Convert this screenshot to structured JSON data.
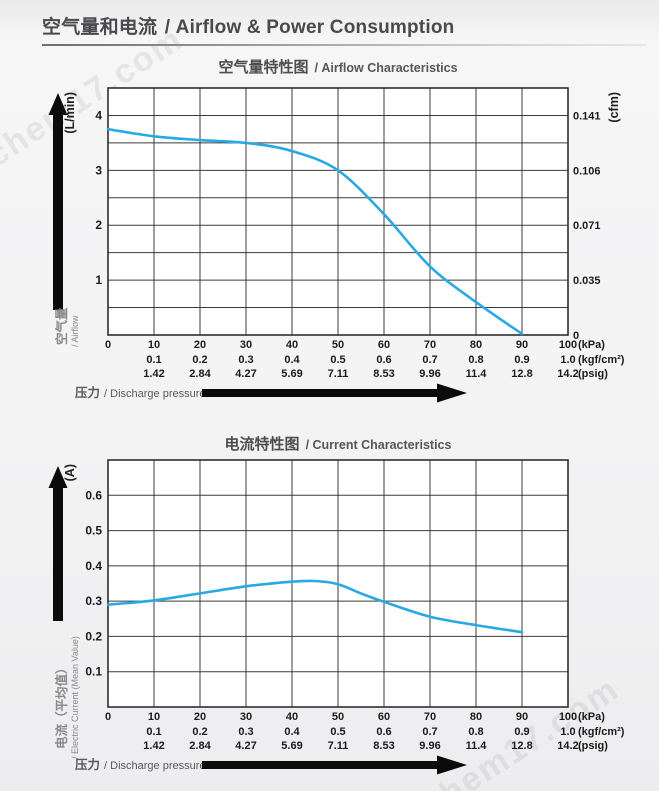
{
  "header": {
    "title_zh": "空气量和电流",
    "title_en": "/ Airflow & Power Consumption"
  },
  "watermark": {
    "text": "chem17.com"
  },
  "pressure_axis": {
    "label_zh": "压力",
    "label_en": "/ Discharge pressure",
    "rows": [
      {
        "unit": "(kPa)",
        "start_tick": 0,
        "values": [
          "0",
          "10",
          "20",
          "30",
          "40",
          "50",
          "60",
          "70",
          "80",
          "90",
          "100"
        ]
      },
      {
        "unit": "(kgf/cm²)",
        "start_tick": 1,
        "values": [
          "0.1",
          "0.2",
          "0.3",
          "0.4",
          "0.5",
          "0.6",
          "0.7",
          "0.8",
          "0.9",
          "1.0"
        ]
      },
      {
        "unit": "(psig)",
        "start_tick": 1,
        "values": [
          "1.42",
          "2.84",
          "4.27",
          "5.69",
          "7.11",
          "8.53",
          "9.96",
          "11.4",
          "12.8",
          "14.2"
        ]
      }
    ]
  },
  "chart_data": [
    {
      "type": "line",
      "name": "airflow-characteristics",
      "title_zh": "空气量特性图",
      "title_en": "/ Airflow Characteristics",
      "unit_left": "(L/min)",
      "unit_right": "(cfm)",
      "axis_title_zh": "空气量",
      "axis_title_en": "/ Airflow",
      "xlabel_zh": "压力",
      "xlabel_en": "/ Discharge pressure",
      "xlim": [
        0,
        100
      ],
      "x_grid_step": 10,
      "ylim": [
        0,
        4.5
      ],
      "y_grid_step": 0.5,
      "grid": true,
      "y_ticks": [
        {
          "v": 4,
          "label": "4"
        },
        {
          "v": 3,
          "label": "3"
        },
        {
          "v": 2,
          "label": "2"
        },
        {
          "v": 1,
          "label": "1"
        }
      ],
      "right_ticks": [
        {
          "v": 4,
          "label": "0.141"
        },
        {
          "v": 3,
          "label": "0.106"
        },
        {
          "v": 2,
          "label": "0.071"
        },
        {
          "v": 1,
          "label": "0.035"
        },
        {
          "v": 0,
          "label": "0"
        }
      ],
      "series": [
        {
          "name": "airflow",
          "color": "#29a9e1",
          "points": [
            [
              0,
              3.75
            ],
            [
              10,
              3.62
            ],
            [
              20,
              3.55
            ],
            [
              30,
              3.5
            ],
            [
              40,
              3.35
            ],
            [
              50,
              3.0
            ],
            [
              60,
              2.2
            ],
            [
              70,
              1.25
            ],
            [
              80,
              0.6
            ],
            [
              90,
              0.02
            ]
          ]
        }
      ]
    },
    {
      "type": "line",
      "name": "current-characteristics",
      "title_zh": "电流特性图",
      "title_en": "/ Current Characteristics",
      "unit_left": "(A)",
      "unit_right": null,
      "axis_title_zh": "电流（平均值）",
      "axis_title_en": "/ Electric Current (Mean Value)",
      "xlabel_zh": "压力",
      "xlabel_en": "/ Discharge pressure",
      "xlim": [
        0,
        100
      ],
      "x_grid_step": 10,
      "ylim": [
        0,
        0.7
      ],
      "y_grid_step": 0.1,
      "grid": true,
      "y_ticks": [
        {
          "v": 0.6,
          "label": "0.6"
        },
        {
          "v": 0.5,
          "label": "0.5"
        },
        {
          "v": 0.4,
          "label": "0.4"
        },
        {
          "v": 0.3,
          "label": "0.3"
        },
        {
          "v": 0.2,
          "label": "0.2"
        },
        {
          "v": 0.1,
          "label": "0.1"
        }
      ],
      "right_ticks": [],
      "series": [
        {
          "name": "electric-current",
          "color": "#29a9e1",
          "points": [
            [
              0,
              0.29
            ],
            [
              10,
              0.302
            ],
            [
              20,
              0.322
            ],
            [
              30,
              0.342
            ],
            [
              40,
              0.355
            ],
            [
              45,
              0.357
            ],
            [
              50,
              0.348
            ],
            [
              55,
              0.322
            ],
            [
              60,
              0.298
            ],
            [
              70,
              0.256
            ],
            [
              80,
              0.232
            ],
            [
              90,
              0.212
            ]
          ]
        }
      ]
    }
  ],
  "style": {
    "curve_color": "#29a9e1",
    "grid_color": "#3b3b3b",
    "tick_text_color": "#1b1b1b",
    "axis_title_color": "#8a8a8c",
    "chart_title_color": "#4d4d4f",
    "arrow_color": "#0b0b0b"
  }
}
